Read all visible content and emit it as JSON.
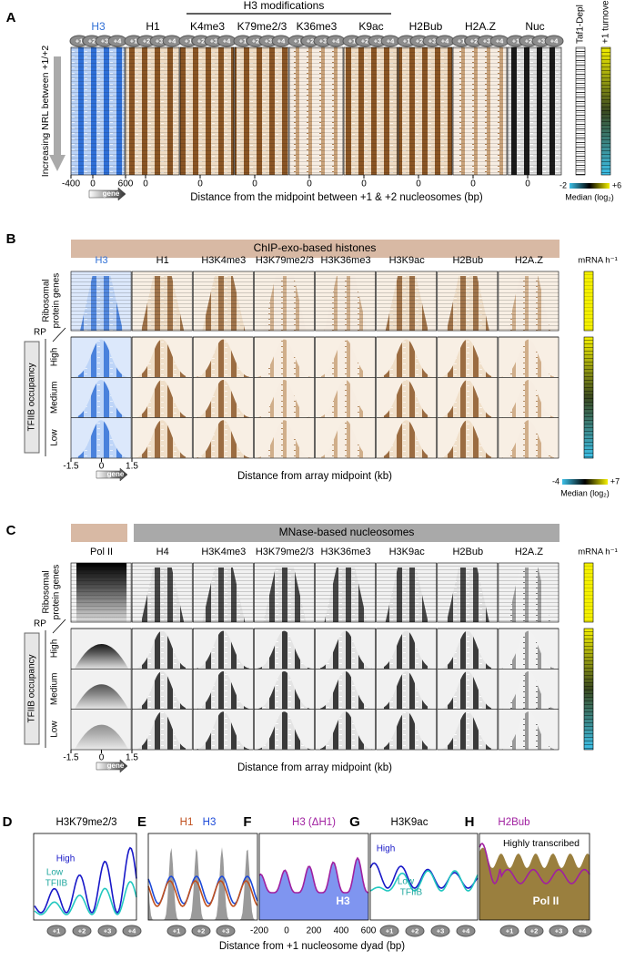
{
  "panel_labels": [
    "A",
    "B",
    "C",
    "D",
    "E",
    "F",
    "G",
    "H"
  ],
  "nucleosome_labels": [
    "+1",
    "+2",
    "+3",
    "+4"
  ],
  "gene_label": "gene",
  "panel_a": {
    "group_title": "H3 modifications",
    "columns": [
      "H3",
      "H1",
      "K4me3",
      "K79me2/3",
      "K36me3",
      "K9ac",
      "H2Bub",
      "H2A.Z",
      "Nuc"
    ],
    "y_label": "Increasing NRL between +1/+2",
    "x_ticks": [
      "-400",
      "0",
      "600"
    ],
    "zero_tick": "0",
    "x_label": "Distance from the midpoint between +1 & +2 nucleosomes (bp)",
    "side_labels": [
      "Taf1-Depl",
      "+1 turnover"
    ],
    "colorbar": {
      "min": "-2",
      "max": "+6",
      "label": "Median (log₂)"
    }
  },
  "panel_b": {
    "header": "ChIP-exo-based histones",
    "columns": [
      "H3",
      "H1",
      "H3K4me3",
      "H3K79me2/3",
      "H3K36me3",
      "H3K9ac",
      "H2Bub",
      "H2A.Z"
    ],
    "side_title": "mRNA h⁻¹",
    "rp_label": [
      "Ribosomal",
      "protein genes"
    ],
    "rp_short": "RP",
    "group_label": "TFIIB occupancy",
    "levels": [
      "High",
      "Medium",
      "Low"
    ],
    "x_ticks": [
      "-1.5",
      "0",
      "1.5"
    ],
    "x_label": "Distance from array midpoint (kb)",
    "colorbar": {
      "min": "-4",
      "max": "+7",
      "label": "Median (log₂)"
    }
  },
  "panel_c": {
    "header": "MNase-based nucleosomes",
    "columns": [
      "Pol II",
      "H4",
      "H3K4me3",
      "H3K79me2/3",
      "H3K36me3",
      "H3K9ac",
      "H2Bub",
      "H2A.Z"
    ],
    "side_title": "mRNA h⁻¹",
    "rp_label": [
      "Ribosomal",
      "protein genes"
    ],
    "rp_short": "RP",
    "group_label": "TFIIB occupancy",
    "levels": [
      "High",
      "Medium",
      "Low"
    ],
    "x_ticks": [
      "-1.5",
      "0",
      "1.5"
    ],
    "x_label": "Distance from array midpoint (kb)"
  },
  "panel_d": {
    "title": "H3K79me2/3",
    "legend": [
      "High",
      "Low",
      "TFIIB"
    ]
  },
  "panel_e": {
    "titles": [
      "H1",
      "H3"
    ]
  },
  "panel_f": {
    "title": "H3 (ΔH1)",
    "fill_label": "H3",
    "x_ticks": [
      "-200",
      "0",
      "200",
      "400",
      "600"
    ]
  },
  "panel_g": {
    "title": "H3K9ac",
    "legend": [
      "High",
      "Low",
      "TFIIB"
    ]
  },
  "panel_h": {
    "title": "H2Bub",
    "note": "Highly transcribed",
    "fill_label": "Pol II"
  },
  "bottom_x_label": "Distance from +1 nucleosome dyad (bp)"
}
